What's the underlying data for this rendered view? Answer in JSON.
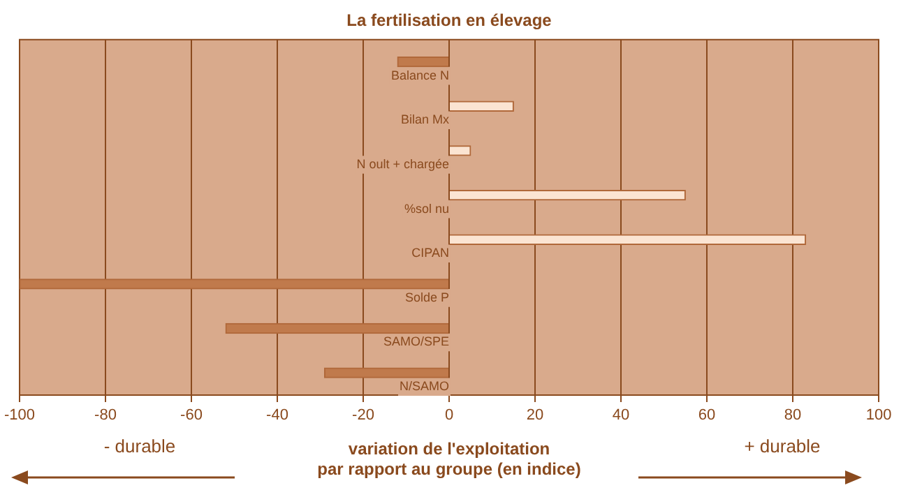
{
  "chart_data": {
    "type": "bar",
    "orientation": "horizontal",
    "title": "La fertilisation en élevage",
    "xlabel": "variation de l'exploitation\npar rapport au groupe (en indice)",
    "categories": [
      "Balance N",
      "Bilan Mx",
      "N oult + chargée",
      "%sol nu",
      "CIPAN",
      "Solde P",
      "SAMO/SPE",
      "N/SAMO"
    ],
    "values": [
      -12,
      15,
      5,
      55,
      83,
      -100,
      -52,
      -29
    ],
    "colors": [
      "#c07a4c",
      "#fbe4d2",
      "#fbe4d2",
      "#fbe4d2",
      "#fbe4d2",
      "#c07a4c",
      "#c07a4c",
      "#c07a4c"
    ],
    "xlim": [
      -100,
      100
    ],
    "xticks": [
      -100,
      -80,
      -60,
      -40,
      -20,
      0,
      20,
      40,
      60,
      80,
      100
    ],
    "grid": "x",
    "legend": false,
    "annotations": [
      "- durable",
      "+ durable"
    ]
  }
}
